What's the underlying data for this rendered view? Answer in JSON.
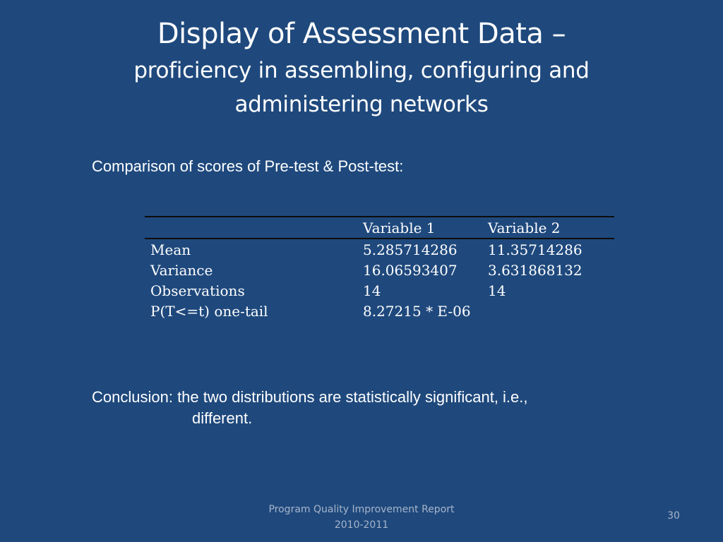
{
  "slide": {
    "title": "Display of Assessment Data –",
    "subtitle": "proficiency in assembling, configuring and administering networks",
    "intro": "Comparison of scores of Pre-test & Post-test:",
    "table": {
      "headers": [
        "",
        "Variable 1",
        "Variable 2"
      ],
      "rows": [
        [
          "Mean",
          "5.285714286",
          "11.35714286"
        ],
        [
          "Variance",
          "16.06593407",
          "3.631868132"
        ],
        [
          "Observations",
          "14",
          "14"
        ],
        [
          "P(T<=t) one-tail",
          "8.27215 * E-06",
          ""
        ]
      ]
    },
    "conclusion_line1": "Conclusion: the two distributions are statistically significant, i.e.,",
    "conclusion_line2": "different.",
    "footer_line1": "Program Quality Improvement Report",
    "footer_line2": "2010-2011",
    "page_number": "30"
  },
  "colors": {
    "background": "#1f497d",
    "text": "#ffffff",
    "footer_text": "#a6b4c9",
    "table_rule": "#0d0d0d"
  }
}
